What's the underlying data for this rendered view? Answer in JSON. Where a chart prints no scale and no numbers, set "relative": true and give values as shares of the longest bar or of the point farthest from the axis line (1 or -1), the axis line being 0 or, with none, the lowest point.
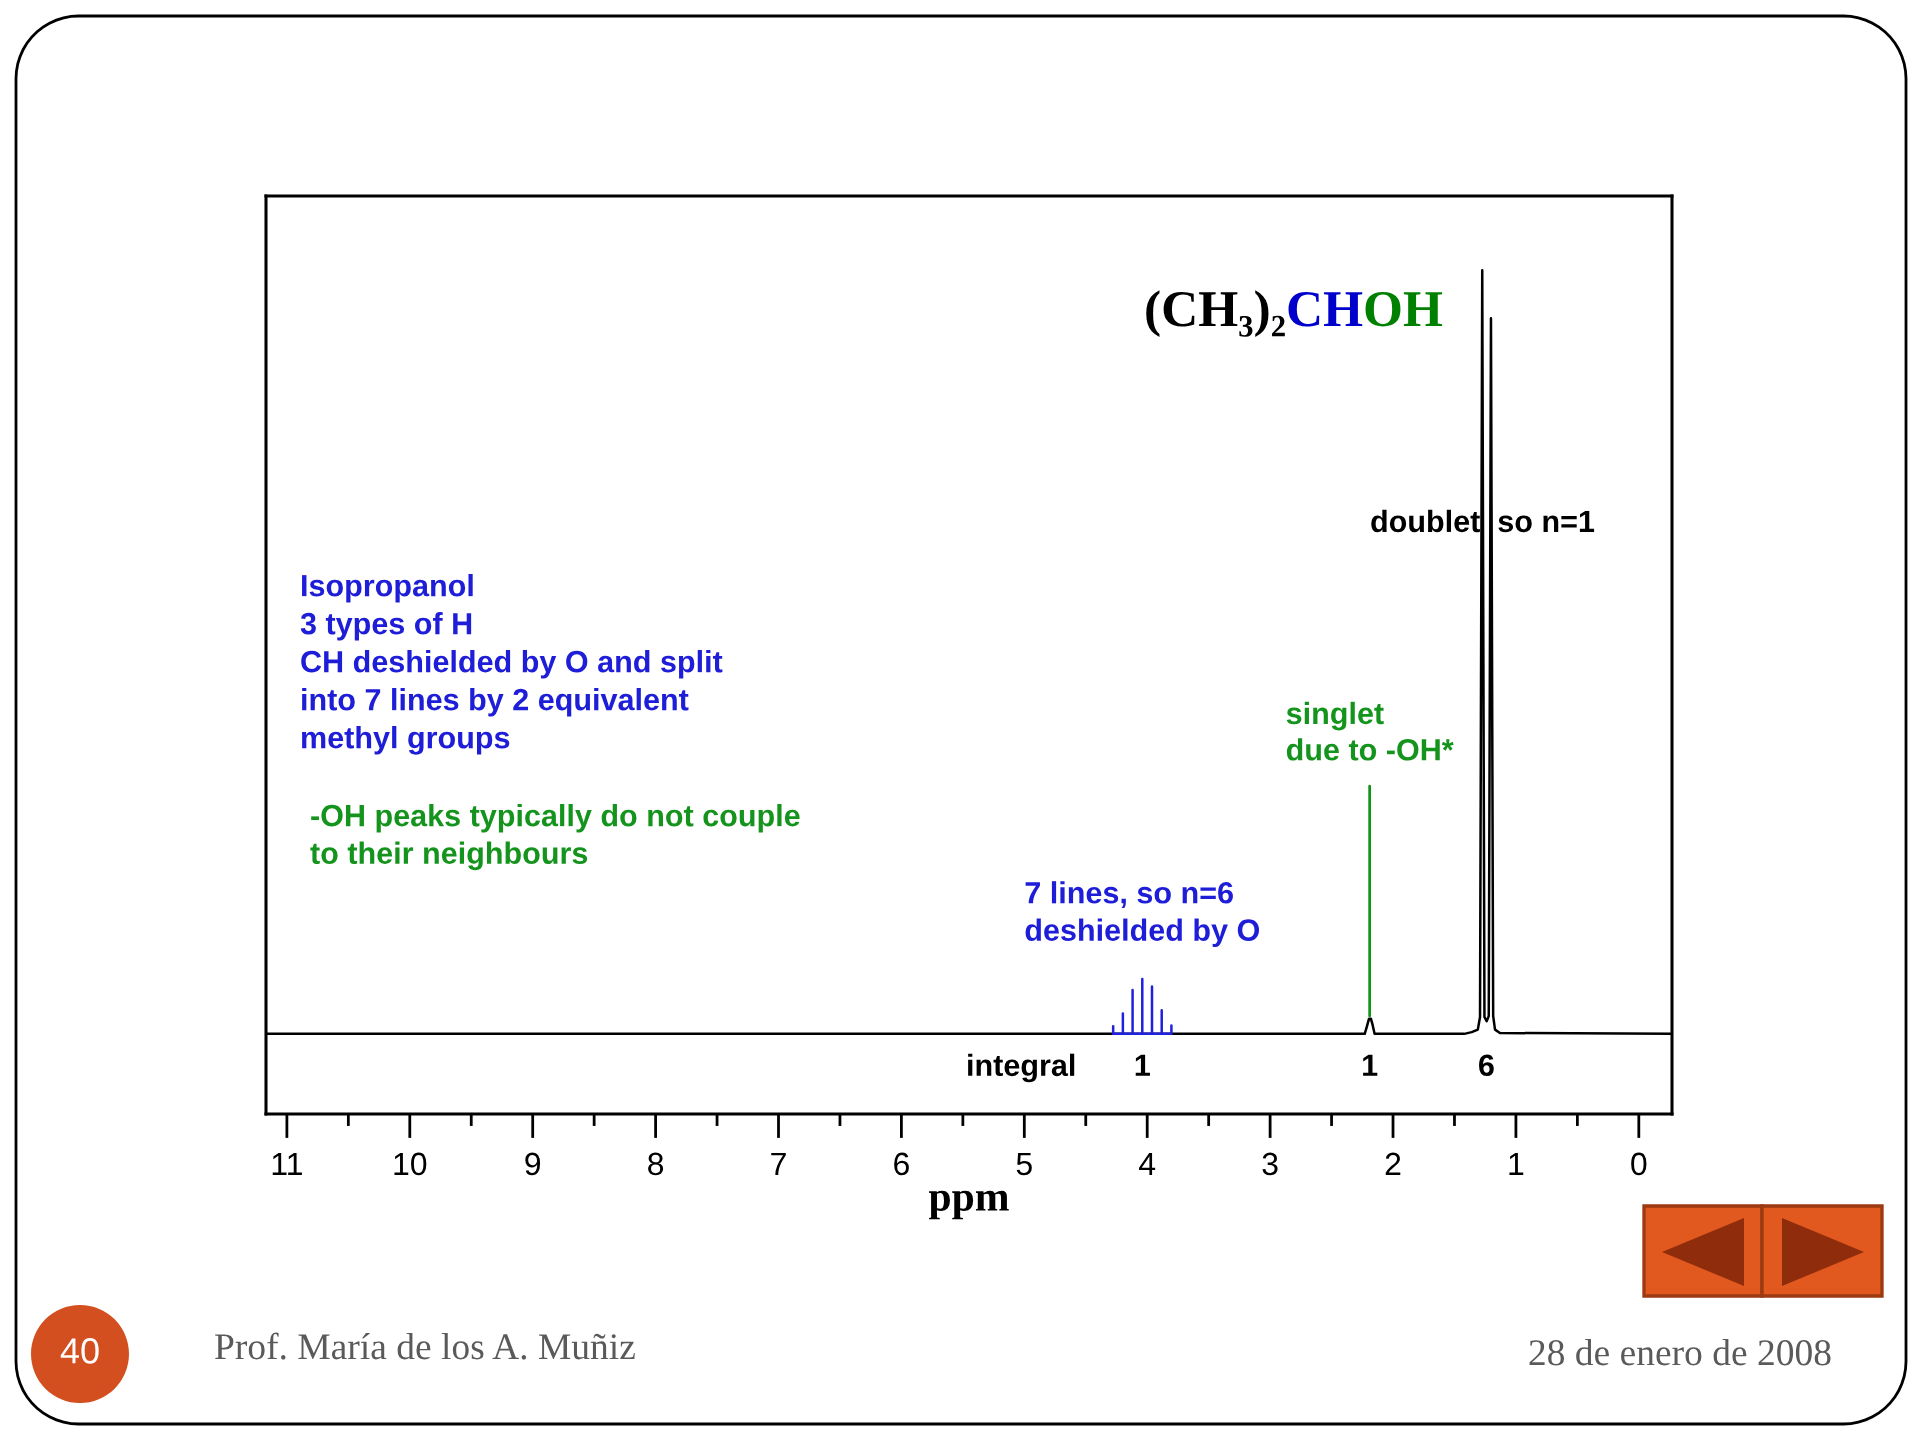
{
  "chart_data": {
    "type": "line",
    "relative": true,
    "xlabel": "ppm",
    "xlim": [
      11.17,
      -0.27
    ],
    "xticks": [
      11,
      {
        "value": 10.5,
        "label": null
      },
      10,
      {
        "value": 9.5,
        "label": null
      },
      9,
      {
        "value": 8.5,
        "label": null
      },
      8,
      {
        "value": 7.5,
        "label": null
      },
      7,
      {
        "value": 6.5,
        "label": null
      },
      6,
      {
        "value": 5.5,
        "label": null
      },
      5,
      {
        "value": 4.5,
        "label": null
      },
      4,
      {
        "value": 3.5,
        "label": null
      },
      3,
      {
        "value": 2.5,
        "label": null
      },
      2,
      {
        "value": 1.5,
        "label": null
      },
      1,
      {
        "value": 0.5,
        "label": null
      },
      0
    ],
    "tick_labels": "x",
    "series": [
      {
        "color": "#000000",
        "x": [
          11.17,
          2.23,
          2.21,
          2.195,
          2.18,
          2.165,
          2.15,
          1.42,
          1.36,
          1.31,
          1.292,
          1.274,
          1.256,
          1.238,
          1.221,
          1.203,
          1.185,
          1.17,
          1.13,
          -0.27
        ],
        "values": [
          0.095,
          0.095,
          0.105,
          0.113,
          0.113,
          0.105,
          0.095,
          0.095,
          0.097,
          0.1,
          0.115,
          1.0,
          0.115,
          0.11,
          0.116,
          0.943,
          0.116,
          0.1,
          0.096,
          0.095
        ]
      },
      {
        "color": "#2020e0",
        "x": [
          4.277,
          4.277,
          4.277,
          4.198,
          4.198,
          4.198,
          4.119,
          4.119,
          4.119,
          4.04,
          4.04,
          4.04,
          3.961,
          3.961,
          3.961,
          3.882,
          3.882,
          3.882,
          3.803,
          3.803,
          3.803
        ],
        "values": [
          0.095,
          0.104,
          0.095,
          0.095,
          0.119,
          0.095,
          0.095,
          0.147,
          0.095,
          0.095,
          0.16,
          0.095,
          0.095,
          0.151,
          0.095,
          0.095,
          0.123,
          0.095,
          0.095,
          0.105,
          0.095
        ]
      }
    ],
    "annotations": [
      "(CH₃)₂",
      "CH",
      "OH",
      "doublet  so n=1",
      {
        "text": "singlet\ndue to -OH*",
        "x": 2.19,
        "y": 0.113
      },
      {
        "text": "7 lines, so n=6\ndeshielded by O",
        "x": 4.04,
        "y": 0.16
      },
      "Isopropanol\n3 types of H\nCH deshielded by O and split\ninto 7 lines by 2 equivalent\nmethyl groups",
      "-OH peaks typically do not couple\nto their neighbours",
      "integral",
      {
        "text": "1",
        "x": 4.04,
        "y": 0.095
      },
      {
        "text": "1",
        "x": 2.19,
        "y": 0.095
      },
      {
        "text": "6",
        "x": 1.24,
        "y": 0.095
      },
      "Prof. María de los A. Muñiz",
      "28 de enero de 2008",
      "40"
    ]
  }
}
